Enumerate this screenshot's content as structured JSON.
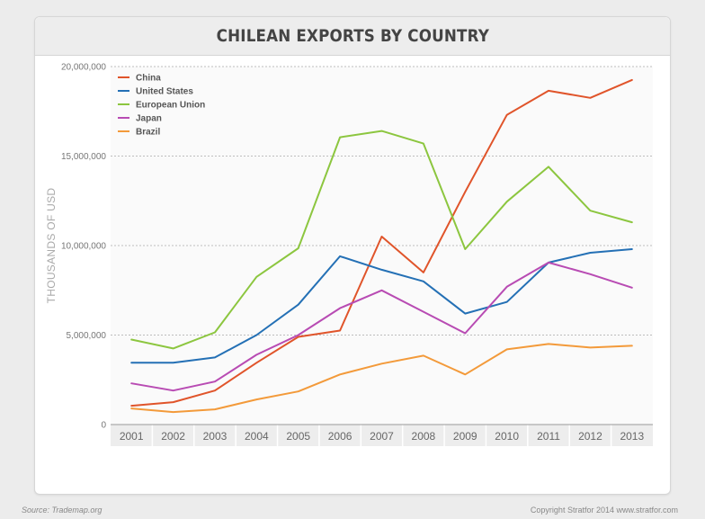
{
  "chart_data": {
    "type": "line",
    "title": "CHILEAN EXPORTS BY COUNTRY",
    "xlabel": "",
    "ylabel": "THOUSANDS OF USD",
    "x": [
      "2001",
      "2002",
      "2003",
      "2004",
      "2005",
      "2006",
      "2007",
      "2008",
      "2009",
      "2010",
      "2011",
      "2012",
      "2013"
    ],
    "ylim": [
      0,
      20000000
    ],
    "yticks": [
      "0",
      "5,000,000",
      "10,000,000",
      "15,000,000",
      "20,000,000"
    ],
    "ytick_values": [
      0,
      5000000,
      10000000,
      15000000,
      20000000
    ],
    "grid": "horizontal",
    "legend_position": "top-left",
    "series": [
      {
        "name": "China",
        "color": "#e0542a",
        "values": [
          1050000,
          1250000,
          1900000,
          3450000,
          4900000,
          5250000,
          10500000,
          8500000,
          13000000,
          17300000,
          18650000,
          18250000,
          19250000
        ]
      },
      {
        "name": "United States",
        "color": "#2470b5",
        "values": [
          3450000,
          3450000,
          3750000,
          5000000,
          6700000,
          9400000,
          8650000,
          8000000,
          6200000,
          6850000,
          9050000,
          9600000,
          9800000
        ]
      },
      {
        "name": "European Union",
        "color": "#8cc63f",
        "values": [
          4750000,
          4250000,
          5150000,
          8250000,
          9850000,
          16050000,
          16400000,
          15700000,
          9800000,
          12450000,
          14400000,
          11950000,
          11300000
        ]
      },
      {
        "name": "Japan",
        "color": "#b84bb3",
        "values": [
          2300000,
          1900000,
          2400000,
          3900000,
          5000000,
          6500000,
          7500000,
          6300000,
          5100000,
          7700000,
          9050000,
          8400000,
          7650000
        ]
      },
      {
        "name": "Brazil",
        "color": "#f39a3a",
        "values": [
          900000,
          700000,
          850000,
          1400000,
          1850000,
          2800000,
          3400000,
          3850000,
          2800000,
          4200000,
          4500000,
          4300000,
          4400000
        ]
      }
    ]
  },
  "footer": {
    "source": "Source: Trademap.org",
    "copyright": "Copyright Stratfor 2014   www.stratfor.com"
  }
}
